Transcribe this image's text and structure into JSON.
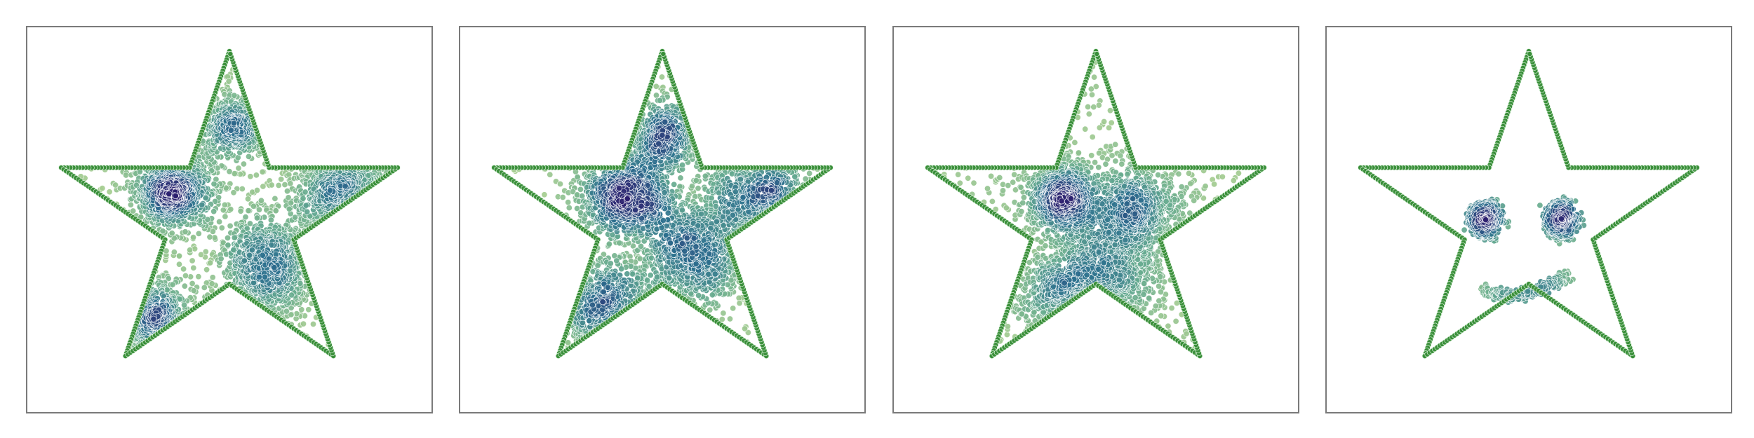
{
  "chart_data": [
    {
      "type": "scatter",
      "title": "",
      "xlabel": "",
      "ylabel": "",
      "xlim": [
        -1.15,
        1.15
      ],
      "ylim": [
        -1.15,
        1.15
      ],
      "grid": false,
      "colormap": "crest",
      "boundary": {
        "shape": "star",
        "outer_radius": 1.0,
        "inner_radius": 0.382,
        "color": "#3a8f3a"
      },
      "series": [
        {
          "clusters": [
            {
              "center": [
                -0.32,
                0.18
              ],
              "spread": 0.11,
              "weight": 1.0
            },
            {
              "center": [
                0.22,
                -0.28
              ],
              "spread": 0.14,
              "weight": 0.9
            },
            {
              "center": [
                0.65,
                0.18
              ],
              "spread": 0.14,
              "weight": 0.6
            },
            {
              "center": [
                -0.45,
                -0.62
              ],
              "spread": 0.12,
              "weight": 0.55
            },
            {
              "center": [
                0.02,
                0.55
              ],
              "spread": 0.09,
              "weight": 0.5
            }
          ]
        }
      ]
    },
    {
      "type": "scatter",
      "title": "",
      "xlabel": "",
      "ylabel": "",
      "xlim": [
        -1.15,
        1.15
      ],
      "ylim": [
        -1.15,
        1.15
      ],
      "grid": false,
      "colormap": "crest",
      "boundary": {
        "shape": "star",
        "outer_radius": 1.0,
        "inner_radius": 0.382,
        "color": "#3a8f3a"
      },
      "series": [
        {
          "clusters": [
            {
              "center": [
                -0.2,
                0.15
              ],
              "spread": 0.12,
              "weight": 1.0
            },
            {
              "center": [
                0.18,
                -0.2
              ],
              "spread": 0.16,
              "weight": 0.85
            },
            {
              "center": [
                0.55,
                0.12
              ],
              "spread": 0.15,
              "weight": 0.6
            },
            {
              "center": [
                -0.32,
                -0.52
              ],
              "spread": 0.14,
              "weight": 0.5
            },
            {
              "center": [
                0.02,
                0.5
              ],
              "spread": 0.1,
              "weight": 0.45
            }
          ]
        }
      ]
    },
    {
      "type": "scatter",
      "title": "",
      "xlabel": "",
      "ylabel": "",
      "xlim": [
        -1.15,
        1.15
      ],
      "ylim": [
        -1.15,
        1.15
      ],
      "grid": false,
      "colormap": "crest",
      "boundary": {
        "shape": "star",
        "outer_radius": 1.0,
        "inner_radius": 0.382,
        "color": "#3a8f3a"
      },
      "series": [
        {
          "clusters": [
            {
              "center": [
                -0.18,
                0.12
              ],
              "spread": 0.1,
              "weight": 1.0
            },
            {
              "center": [
                0.22,
                0.04
              ],
              "spread": 0.13,
              "weight": 0.95
            },
            {
              "center": [
                0.05,
                -0.32
              ],
              "spread": 0.15,
              "weight": 0.8
            },
            {
              "center": [
                -0.2,
                -0.45
              ],
              "spread": 0.13,
              "weight": 0.5
            }
          ]
        }
      ]
    },
    {
      "type": "scatter",
      "title": "",
      "xlabel": "",
      "ylabel": "",
      "xlim": [
        -1.15,
        1.15
      ],
      "ylim": [
        -1.15,
        1.15
      ],
      "grid": false,
      "colormap": "crest",
      "boundary": {
        "shape": "star",
        "outer_radius": 1.0,
        "inner_radius": 0.382,
        "color": "#3a8f3a"
      },
      "series": [
        {
          "face": {
            "left_eye": {
              "center": [
                -0.23,
                0.0
              ],
              "radius": 0.09
            },
            "right_eye": {
              "center": [
                0.2,
                0.0
              ],
              "radius": 0.09
            },
            "mouth": {
              "center": [
                -0.02,
                -0.38
              ],
              "width": 0.46,
              "depth": 0.12
            }
          }
        }
      ]
    }
  ]
}
